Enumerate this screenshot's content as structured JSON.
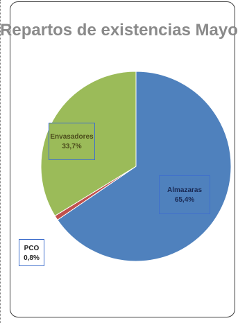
{
  "chart_data": {
    "type": "pie",
    "title": "Repartos de existencias Mayo",
    "slices": [
      {
        "label": "Almazaras",
        "value": 65.4,
        "value_label": "65,4%",
        "color": "#4f81bd"
      },
      {
        "label": "PCO",
        "value": 0.8,
        "value_label": "0,8%",
        "color": "#c0504d"
      },
      {
        "label": "Envasadores",
        "value": 33.7,
        "value_label": "33,7%",
        "color": "#9bbb59"
      }
    ],
    "legend": "none"
  }
}
